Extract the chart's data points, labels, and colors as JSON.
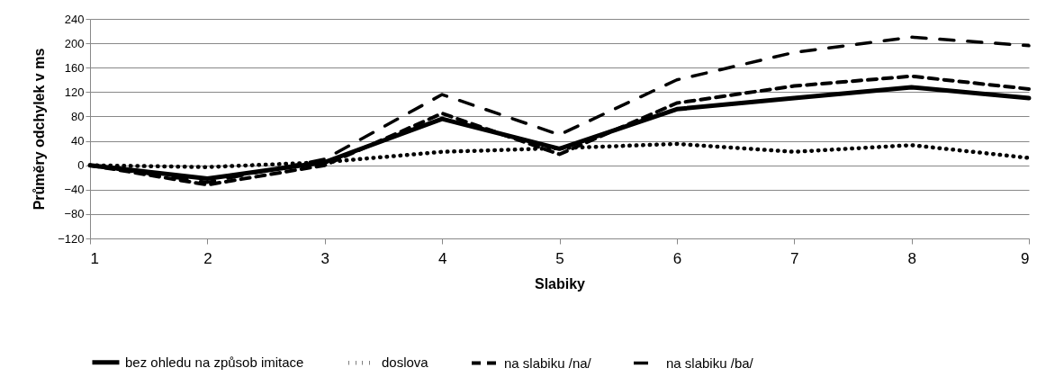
{
  "chart_data": {
    "type": "line",
    "xlabel": "Slabiky",
    "ylabel": "Průměry odchylek v ms",
    "x": [
      1,
      2,
      3,
      4,
      5,
      6,
      7,
      8,
      9
    ],
    "xlim": [
      1,
      9
    ],
    "xticks": [
      1,
      2,
      3,
      4,
      5,
      6,
      7,
      8,
      9
    ],
    "ylim": [
      -120,
      240
    ],
    "yticks": [
      -120,
      -80,
      -40,
      0,
      40,
      80,
      120,
      160,
      200,
      240
    ],
    "grid": "y",
    "legend": "bottom",
    "marker": "none",
    "series": [
      {
        "name": "bez ohledu na způsob imitace",
        "color": "#000000",
        "line_style": "solid",
        "values": [
          0,
          -22,
          5,
          76,
          27,
          92,
          110,
          128,
          110
        ]
      },
      {
        "name": "doslova",
        "color": "#000000",
        "line_style": "dotted",
        "values": [
          0,
          -3,
          5,
          22,
          28,
          35,
          22,
          33,
          12
        ]
      },
      {
        "name": "na slabiku /na/",
        "color": "#000000",
        "line_style": "dashed",
        "values": [
          0,
          -32,
          0,
          85,
          18,
          102,
          130,
          146,
          125
        ]
      },
      {
        "name": "na slabiku /ba/",
        "color": "#000000",
        "line_style": "dashed",
        "values": [
          0,
          -28,
          10,
          116,
          50,
          140,
          185,
          210,
          196
        ]
      }
    ]
  }
}
